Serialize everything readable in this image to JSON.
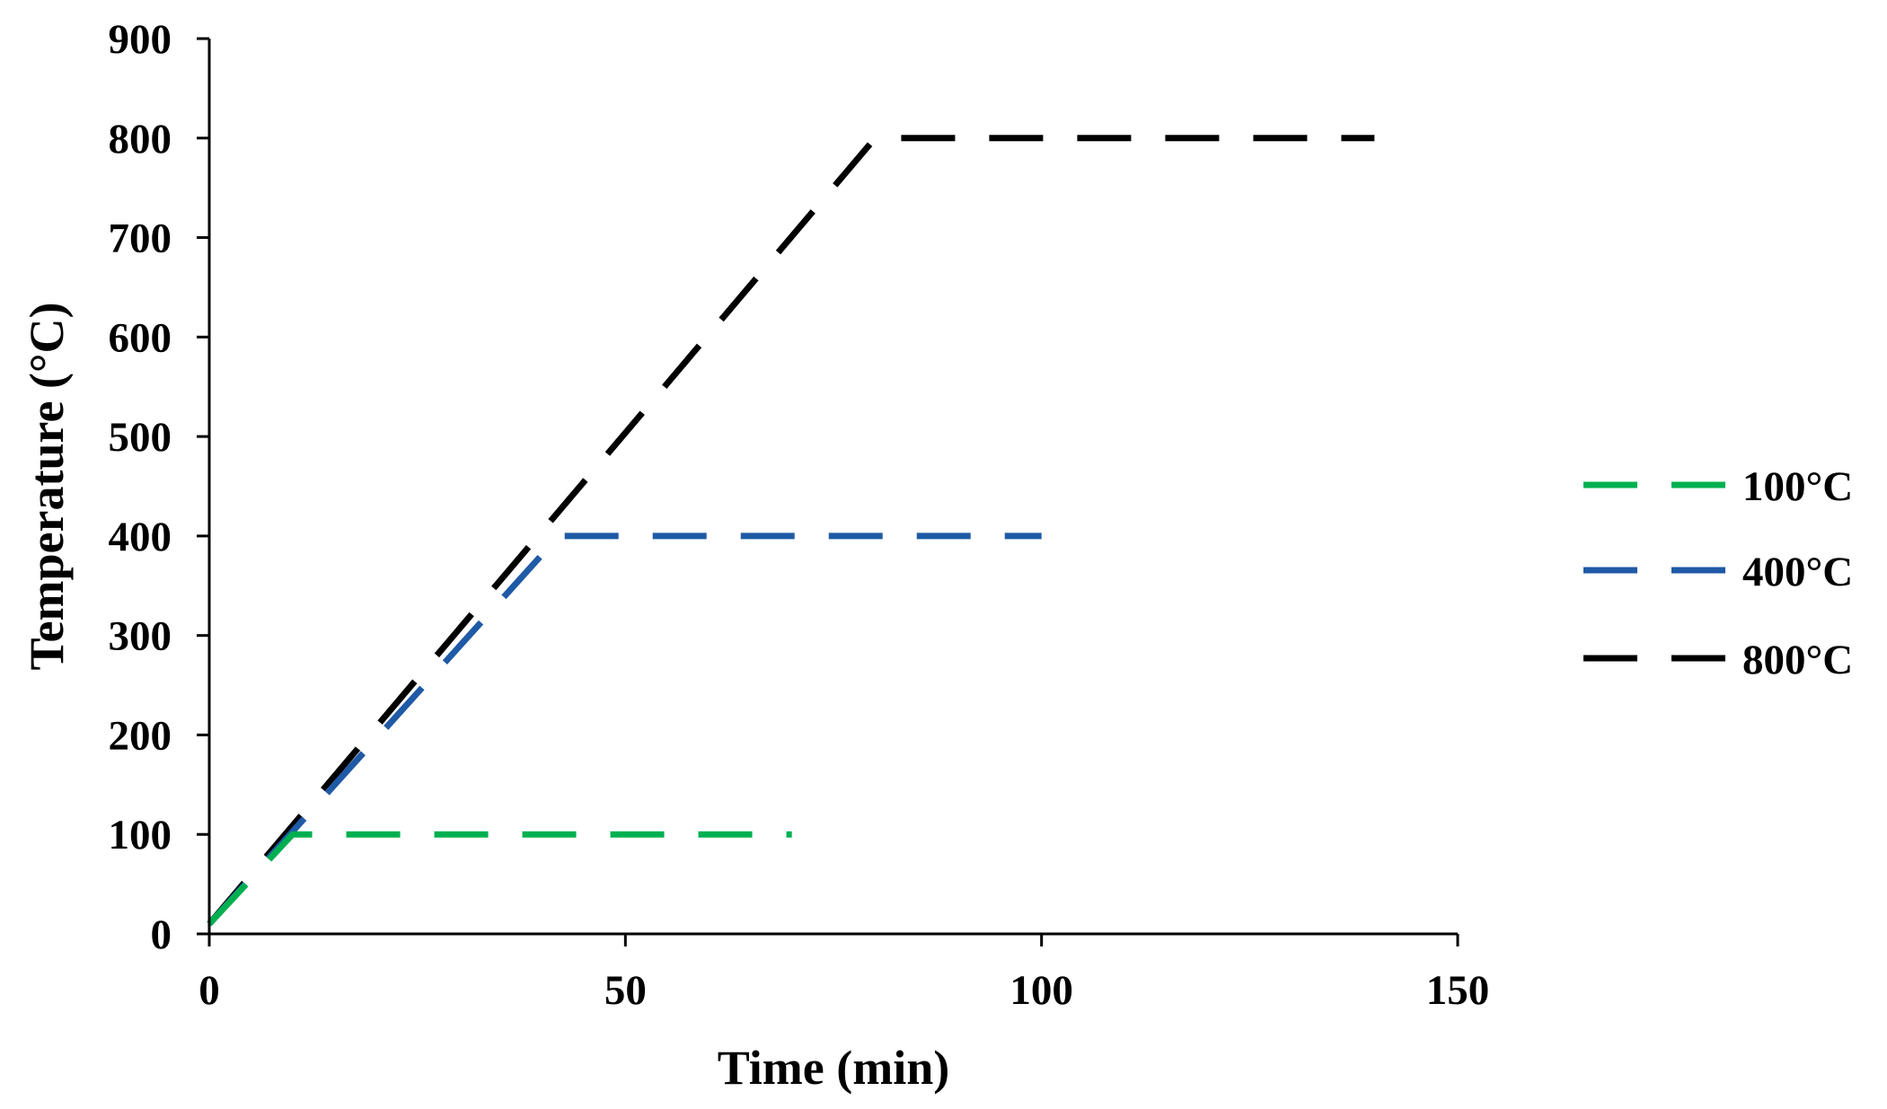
{
  "chart_data": {
    "type": "line",
    "xlabel": "Time (min)",
    "ylabel": "Temperature (°C)",
    "xlim": [
      0,
      150
    ],
    "ylim": [
      0,
      900
    ],
    "xticks": [
      0,
      50,
      100,
      150
    ],
    "yticks": [
      0,
      100,
      200,
      300,
      400,
      500,
      600,
      700,
      800,
      900
    ],
    "grid": false,
    "legend_position": "right",
    "series": [
      {
        "name": "100°C",
        "color": "#00b050",
        "dash": "dashed",
        "points": [
          [
            0,
            10
          ],
          [
            10,
            100
          ],
          [
            70,
            100
          ]
        ]
      },
      {
        "name": "400°C",
        "color": "#1f5aa6",
        "dash": "dashed",
        "points": [
          [
            0,
            10
          ],
          [
            42,
            400
          ],
          [
            100,
            400
          ]
        ]
      },
      {
        "name": "800°C",
        "color": "#000000",
        "dash": "dashed",
        "points": [
          [
            0,
            10
          ],
          [
            80,
            800
          ],
          [
            140,
            800
          ]
        ]
      }
    ]
  }
}
